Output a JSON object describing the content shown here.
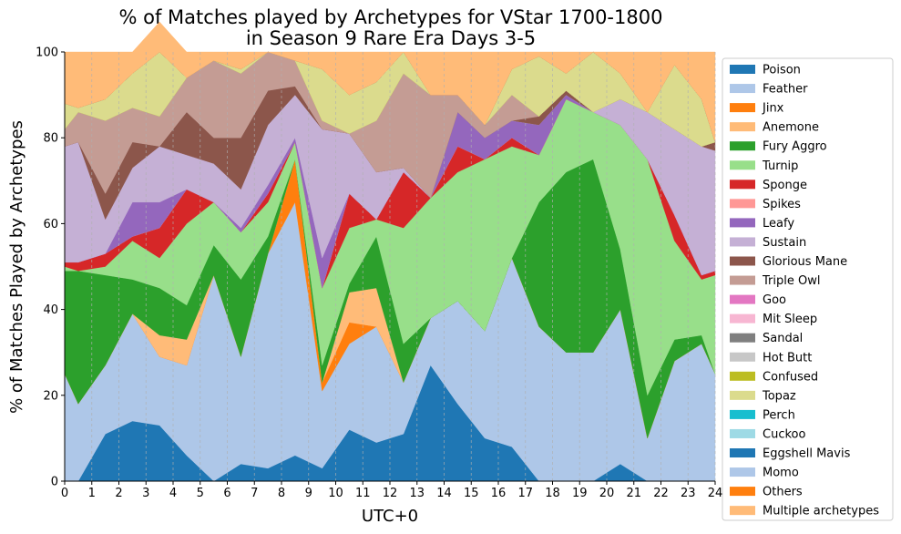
{
  "chart_data": {
    "type": "area",
    "title": "% of Matches played by Archetypes for VStar 1700-1800",
    "subtitle": "in Season 9 Rare Era Days 3-5",
    "xlabel": "UTC+0",
    "ylabel": "% of Matches Played by Archetypes",
    "xlim": [
      0,
      24
    ],
    "ylim": [
      0,
      100
    ],
    "x_ticks": [
      "0",
      "1",
      "2",
      "3",
      "4",
      "5",
      "6",
      "7",
      "8",
      "9",
      "10",
      "11",
      "12",
      "13",
      "14",
      "15",
      "16",
      "17",
      "18",
      "19",
      "20",
      "21",
      "22",
      "23",
      "24"
    ],
    "y_ticks": [
      "0",
      "20",
      "40",
      "60",
      "80",
      "100"
    ],
    "x": [
      0,
      0.5,
      1.5,
      2.5,
      3.5,
      4.5,
      5.5,
      6.5,
      7.5,
      8.5,
      9.5,
      10.5,
      11.5,
      12.5,
      13.5,
      14.5,
      15.5,
      16.5,
      17.5,
      18.5,
      19.5,
      20.5,
      21.5,
      22.5,
      23.5,
      24
    ],
    "grid": "vertical",
    "legend_position": "right",
    "series": [
      {
        "name": "Poison",
        "color": "#1f77b4",
        "values": [
          0,
          0,
          11,
          14,
          13,
          6,
          0,
          4,
          3,
          6,
          3,
          12,
          9,
          11,
          27,
          18,
          10,
          8,
          0,
          0,
          0,
          4,
          0,
          0,
          0,
          0
        ]
      },
      {
        "name": "Feather",
        "color": "#aec7e8",
        "values": [
          25,
          18,
          16,
          25,
          16,
          21,
          48,
          25,
          50,
          59,
          18,
          20,
          27,
          12,
          11,
          24,
          25,
          44,
          36,
          30,
          30,
          36,
          10,
          28,
          32,
          25
        ]
      },
      {
        "name": "Jinx",
        "color": "#ff7f0e",
        "values": [
          0,
          0,
          0,
          0,
          0,
          0,
          0,
          0,
          0,
          10,
          2,
          5,
          0,
          0,
          0,
          0,
          0,
          0,
          0,
          0,
          0,
          0,
          0,
          0,
          0,
          0
        ]
      },
      {
        "name": "Anemone",
        "color": "#ffbb78",
        "values": [
          0,
          0,
          0,
          0,
          5,
          6,
          0,
          0,
          0,
          0,
          0,
          7,
          9,
          0,
          0,
          0,
          0,
          0,
          0,
          0,
          0,
          0,
          0,
          0,
          0,
          0
        ]
      },
      {
        "name": "Fury Aggro",
        "color": "#2ca02c",
        "values": [
          24,
          31,
          21,
          8,
          11,
          8,
          7,
          18,
          4,
          0,
          4,
          2,
          12,
          9,
          0,
          0,
          0,
          0,
          29,
          42,
          45,
          14,
          10,
          5,
          2,
          0
        ]
      },
      {
        "name": "Turnip",
        "color": "#98df8a",
        "values": [
          1,
          0,
          2,
          9,
          7,
          19,
          10,
          11,
          8,
          4,
          18,
          13,
          4,
          27,
          28,
          30,
          40,
          26,
          11,
          17,
          11,
          29,
          55,
          23,
          13,
          23
        ]
      },
      {
        "name": "Sponge",
        "color": "#d62728",
        "values": [
          1,
          2,
          3,
          1,
          7,
          8,
          0,
          0,
          2,
          0,
          0,
          8,
          0,
          13,
          0,
          6,
          0,
          2,
          0,
          0,
          0,
          0,
          0,
          6,
          1,
          1
        ]
      },
      {
        "name": "Spikes",
        "color": "#ff9896",
        "values": [
          0,
          0,
          0,
          0,
          0,
          0,
          0,
          0,
          0,
          0,
          0,
          0,
          0,
          0,
          0,
          0,
          0,
          0,
          0,
          0,
          0,
          0,
          0,
          0,
          0,
          0
        ]
      },
      {
        "name": "Leafy",
        "color": "#9467bd",
        "values": [
          0,
          0,
          0,
          8,
          6,
          0,
          0,
          1,
          2,
          1,
          7,
          0,
          0,
          0,
          0,
          8,
          5,
          4,
          7,
          1,
          0,
          0,
          0,
          0,
          0,
          0
        ]
      },
      {
        "name": "Sustain",
        "color": "#c5b0d5",
        "values": [
          27,
          28,
          8,
          8,
          13,
          8,
          9,
          9,
          14,
          10,
          30,
          14,
          11,
          1,
          0,
          0,
          0,
          0,
          0,
          0,
          0,
          6,
          11,
          20,
          30,
          28
        ]
      },
      {
        "name": "Glorious Mane",
        "color": "#8c564b",
        "values": [
          0,
          0,
          6,
          6,
          0,
          10,
          6,
          12,
          8,
          2,
          0,
          0,
          0,
          0,
          0,
          0,
          0,
          0,
          2,
          1,
          0,
          0,
          0,
          0,
          0,
          2
        ]
      },
      {
        "name": "Triple Owl",
        "color": "#c49c94",
        "values": [
          4,
          7,
          17,
          8,
          7,
          8,
          18,
          15,
          9,
          6,
          2,
          0,
          12,
          22,
          24,
          4,
          3,
          6,
          0,
          0,
          0,
          0,
          0,
          0,
          0,
          0
        ]
      },
      {
        "name": "Goo",
        "color": "#e377c2",
        "values": [
          0,
          0,
          0,
          0,
          0,
          0,
          0,
          0,
          0,
          0,
          0,
          0,
          0,
          0,
          0,
          0,
          0,
          0,
          0,
          0,
          0,
          0,
          0,
          0,
          0,
          0
        ]
      },
      {
        "name": "Mit Sleep",
        "color": "#f7b6d2",
        "values": [
          0,
          0,
          0,
          0,
          0,
          0,
          0,
          0,
          0,
          0,
          0,
          0,
          0,
          0,
          0,
          0,
          0,
          0,
          0,
          0,
          0,
          0,
          0,
          0,
          0,
          0
        ]
      },
      {
        "name": "Sandal",
        "color": "#7f7f7f",
        "values": [
          0,
          0,
          0,
          0,
          0,
          0,
          0,
          0,
          0,
          0,
          0,
          0,
          0,
          0,
          0,
          0,
          0,
          0,
          0,
          0,
          0,
          0,
          0,
          0,
          0,
          0
        ]
      },
      {
        "name": "Hot Butt",
        "color": "#c7c7c7",
        "values": [
          0,
          0,
          0,
          0,
          0,
          0,
          0,
          0,
          0,
          0,
          0,
          0,
          0,
          0,
          0,
          0,
          0,
          0,
          0,
          0,
          0,
          0,
          0,
          0,
          0,
          0
        ]
      },
      {
        "name": "Confused",
        "color": "#bcbd22",
        "values": [
          0,
          0,
          0,
          0,
          0,
          0,
          0,
          0,
          0,
          0,
          0,
          0,
          0,
          0,
          0,
          0,
          0,
          0,
          0,
          0,
          0,
          0,
          0,
          0,
          0,
          0
        ]
      },
      {
        "name": "Topaz",
        "color": "#dbdb8d",
        "values": [
          6,
          1,
          5,
          8,
          15,
          0,
          0,
          1,
          0,
          0,
          12,
          9,
          9,
          5,
          0,
          0,
          0,
          6,
          14,
          4,
          14,
          6,
          0,
          15,
          11,
          0
        ]
      },
      {
        "name": "Perch",
        "color": "#17becf",
        "values": [
          0,
          0,
          0,
          0,
          0,
          0,
          0,
          0,
          0,
          0,
          0,
          0,
          0,
          0,
          0,
          0,
          0,
          0,
          0,
          0,
          0,
          0,
          0,
          0,
          0,
          0
        ]
      },
      {
        "name": "Cuckoo",
        "color": "#9edae5",
        "values": [
          0,
          0,
          0,
          0,
          0,
          0,
          0,
          0,
          0,
          0,
          0,
          0,
          0,
          0,
          0,
          0,
          0,
          0,
          0,
          0,
          0,
          0,
          0,
          0,
          0,
          0
        ]
      },
      {
        "name": "Eggshell Mavis",
        "color": "#1f77b4",
        "values": [
          0,
          0,
          0,
          0,
          0,
          0,
          0,
          0,
          0,
          0,
          0,
          0,
          0,
          0,
          0,
          0,
          0,
          0,
          0,
          0,
          0,
          0,
          0,
          0,
          0,
          0
        ]
      },
      {
        "name": "Momo",
        "color": "#aec7e8",
        "values": [
          0,
          0,
          0,
          0,
          0,
          0,
          0,
          0,
          0,
          0,
          0,
          0,
          0,
          0,
          0,
          0,
          0,
          0,
          0,
          0,
          0,
          0,
          0,
          0,
          0,
          0
        ]
      },
      {
        "name": "Others",
        "color": "#ff7f0e",
        "values": [
          0,
          0,
          0,
          0,
          0,
          0,
          0,
          0,
          0,
          0,
          0,
          0,
          0,
          0,
          0,
          0,
          0,
          0,
          0,
          0,
          0,
          0,
          0,
          0,
          0,
          0
        ]
      },
      {
        "name": "Multiple archetypes",
        "color": "#ffbb78",
        "values": [
          12,
          13,
          11,
          5,
          7,
          6,
          2,
          4,
          0,
          2,
          4,
          10,
          7,
          0,
          10,
          10,
          17,
          4,
          1,
          5,
          0,
          5,
          14,
          3,
          11,
          21
        ]
      }
    ]
  }
}
